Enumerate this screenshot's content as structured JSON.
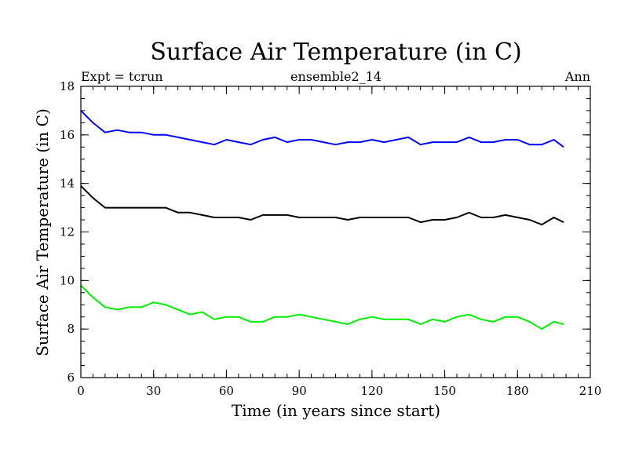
{
  "chart_data": {
    "type": "line",
    "title": "Surface Air Temperature (in C)",
    "subtitle_left": "Expt = tcrun",
    "subtitle_center": "ensemble2_14",
    "subtitle_right": "Ann",
    "xlabel": "Time (in years since start)",
    "ylabel": "Surface Air Temperature (in C)",
    "xlim": [
      0,
      210
    ],
    "ylim": [
      6,
      18
    ],
    "xticks": [
      0,
      30,
      60,
      90,
      120,
      150,
      180,
      210
    ],
    "yticks": [
      6,
      8,
      10,
      12,
      14,
      16,
      18
    ],
    "grid": false,
    "series": [
      {
        "color": "#0000ff",
        "x": [
          0,
          5,
          10,
          15,
          20,
          25,
          30,
          35,
          40,
          45,
          50,
          55,
          60,
          65,
          70,
          75,
          80,
          85,
          90,
          95,
          100,
          105,
          110,
          115,
          120,
          125,
          130,
          135,
          140,
          145,
          150,
          155,
          160,
          165,
          170,
          175,
          180,
          185,
          190,
          195,
          199
        ],
        "values": [
          17.0,
          16.5,
          16.1,
          16.2,
          16.1,
          16.1,
          16.0,
          16.0,
          15.9,
          15.8,
          15.7,
          15.6,
          15.8,
          15.7,
          15.6,
          15.8,
          15.9,
          15.7,
          15.8,
          15.8,
          15.7,
          15.6,
          15.7,
          15.7,
          15.8,
          15.7,
          15.8,
          15.9,
          15.6,
          15.7,
          15.7,
          15.7,
          15.9,
          15.7,
          15.7,
          15.8,
          15.8,
          15.6,
          15.6,
          15.8,
          15.5
        ]
      },
      {
        "color": "#000000",
        "x": [
          0,
          5,
          10,
          15,
          20,
          25,
          30,
          35,
          40,
          45,
          50,
          55,
          60,
          65,
          70,
          75,
          80,
          85,
          90,
          95,
          100,
          105,
          110,
          115,
          120,
          125,
          130,
          135,
          140,
          145,
          150,
          155,
          160,
          165,
          170,
          175,
          180,
          185,
          190,
          195,
          199
        ],
        "values": [
          13.9,
          13.4,
          13.0,
          13.0,
          13.0,
          13.0,
          13.0,
          13.0,
          12.8,
          12.8,
          12.7,
          12.6,
          12.6,
          12.6,
          12.5,
          12.7,
          12.7,
          12.7,
          12.6,
          12.6,
          12.6,
          12.6,
          12.5,
          12.6,
          12.6,
          12.6,
          12.6,
          12.6,
          12.4,
          12.5,
          12.5,
          12.6,
          12.8,
          12.6,
          12.6,
          12.7,
          12.6,
          12.5,
          12.3,
          12.6,
          12.4
        ]
      },
      {
        "color": "#00ee00",
        "x": [
          0,
          5,
          10,
          15,
          20,
          25,
          30,
          35,
          40,
          45,
          50,
          55,
          60,
          65,
          70,
          75,
          80,
          85,
          90,
          95,
          100,
          105,
          110,
          115,
          120,
          125,
          130,
          135,
          140,
          145,
          150,
          155,
          160,
          165,
          170,
          175,
          180,
          185,
          190,
          195,
          199
        ],
        "values": [
          9.8,
          9.3,
          8.9,
          8.8,
          8.9,
          8.9,
          9.1,
          9.0,
          8.8,
          8.6,
          8.7,
          8.4,
          8.5,
          8.5,
          8.3,
          8.3,
          8.5,
          8.5,
          8.6,
          8.5,
          8.4,
          8.3,
          8.2,
          8.4,
          8.5,
          8.4,
          8.4,
          8.4,
          8.2,
          8.4,
          8.3,
          8.5,
          8.6,
          8.4,
          8.3,
          8.5,
          8.5,
          8.3,
          8.0,
          8.3,
          8.2
        ]
      }
    ]
  }
}
